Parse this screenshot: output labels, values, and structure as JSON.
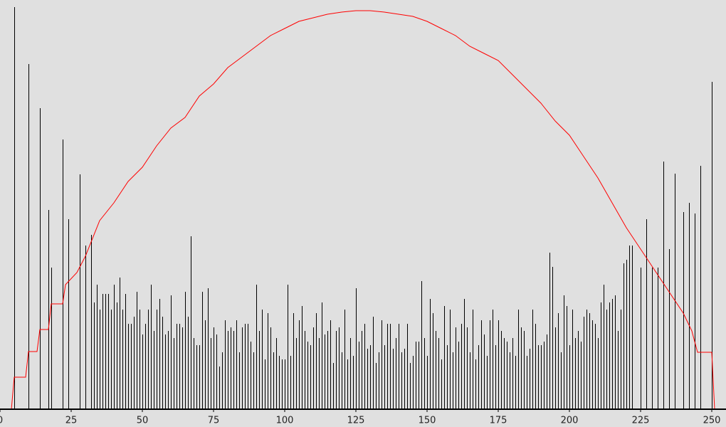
{
  "chart_data": {
    "type": "histogram-curve",
    "xlim": [
      0,
      255
    ],
    "ylim": [
      0,
      575
    ],
    "xticks": [
      0,
      25,
      50,
      75,
      100,
      125,
      150,
      175,
      200,
      225,
      250
    ],
    "series": [
      {
        "color": "#000000",
        "x": [
          0,
          1,
          2,
          3,
          4,
          5,
          6,
          7,
          8,
          9,
          10,
          11,
          12,
          13,
          14,
          15,
          16,
          17,
          18,
          19,
          20,
          21,
          22,
          23,
          24,
          25,
          26,
          27,
          28,
          29,
          30,
          31,
          32,
          33,
          34,
          35,
          36,
          37,
          38,
          39,
          40,
          41,
          42,
          43,
          44,
          45,
          46,
          47,
          48,
          49,
          50,
          51,
          52,
          53,
          54,
          55,
          56,
          57,
          58,
          59,
          60,
          61,
          62,
          63,
          64,
          65,
          66,
          67,
          68,
          69,
          70,
          71,
          72,
          73,
          74,
          75,
          76,
          77,
          78,
          79,
          80,
          81,
          82,
          83,
          84,
          85,
          86,
          87,
          88,
          89,
          90,
          91,
          92,
          93,
          94,
          95,
          96,
          97,
          98,
          99,
          100,
          101,
          102,
          103,
          104,
          105,
          106,
          107,
          108,
          109,
          110,
          111,
          112,
          113,
          114,
          115,
          116,
          117,
          118,
          119,
          120,
          121,
          122,
          123,
          124,
          125,
          126,
          127,
          128,
          129,
          130,
          131,
          132,
          133,
          134,
          135,
          136,
          137,
          138,
          139,
          140,
          141,
          142,
          143,
          144,
          145,
          146,
          147,
          148,
          149,
          150,
          151,
          152,
          153,
          154,
          155,
          156,
          157,
          158,
          159,
          160,
          161,
          162,
          163,
          164,
          165,
          166,
          167,
          168,
          169,
          170,
          171,
          172,
          173,
          174,
          175,
          176,
          177,
          178,
          179,
          180,
          181,
          182,
          183,
          184,
          185,
          186,
          187,
          188,
          189,
          190,
          191,
          192,
          193,
          194,
          195,
          196,
          197,
          198,
          199,
          200,
          201,
          202,
          203,
          204,
          205,
          206,
          207,
          208,
          209,
          210,
          211,
          212,
          213,
          214,
          215,
          216,
          217,
          218,
          219,
          220,
          221,
          222,
          223,
          224,
          225,
          226,
          227,
          228,
          229,
          230,
          231,
          232,
          233,
          234,
          235,
          236,
          237,
          238,
          239,
          240,
          241,
          242,
          243,
          244,
          245,
          246,
          247,
          248,
          249,
          250
        ],
        "values": [
          0,
          0,
          0,
          0,
          0,
          565,
          0,
          0,
          0,
          0,
          485,
          0,
          0,
          0,
          423,
          0,
          0,
          280,
          199,
          0,
          0,
          0,
          379,
          0,
          267,
          0,
          0,
          0,
          330,
          0,
          230,
          0,
          245,
          150,
          175,
          140,
          162,
          162,
          162,
          140,
          175,
          150,
          185,
          140,
          162,
          120,
          120,
          130,
          165,
          140,
          105,
          120,
          140,
          175,
          110,
          140,
          155,
          130,
          105,
          110,
          160,
          100,
          120,
          120,
          115,
          165,
          130,
          243,
          100,
          90,
          90,
          165,
          125,
          170,
          100,
          115,
          105,
          60,
          80,
          125,
          110,
          115,
          110,
          125,
          80,
          115,
          120,
          120,
          95,
          80,
          175,
          110,
          140,
          70,
          135,
          115,
          80,
          100,
          75,
          70,
          70,
          175,
          75,
          135,
          100,
          125,
          145,
          110,
          95,
          90,
          115,
          135,
          100,
          150,
          105,
          110,
          125,
          65,
          110,
          115,
          80,
          140,
          70,
          100,
          75,
          170,
          95,
          110,
          120,
          85,
          90,
          130,
          65,
          80,
          125,
          90,
          120,
          120,
          85,
          100,
          120,
          80,
          85,
          120,
          65,
          75,
          95,
          95,
          180,
          100,
          75,
          155,
          135,
          110,
          100,
          70,
          145,
          90,
          140,
          80,
          115,
          95,
          120,
          155,
          115,
          80,
          140,
          70,
          90,
          125,
          105,
          75,
          125,
          140,
          90,
          125,
          110,
          100,
          95,
          80,
          100,
          75,
          140,
          115,
          110,
          75,
          85,
          140,
          120,
          90,
          90,
          95,
          105,
          220,
          200,
          115,
          135,
          80,
          160,
          145,
          90,
          140,
          100,
          110,
          95,
          130,
          140,
          135,
          125,
          120,
          100,
          150,
          175,
          140,
          150,
          155,
          160,
          110,
          140,
          205,
          210,
          230,
          230,
          0,
          0,
          199,
          0,
          267,
          0,
          199,
          0,
          199,
          0,
          348,
          0,
          225,
          0,
          331,
          0,
          0,
          277,
          0,
          290,
          0,
          275,
          0,
          342,
          0,
          0,
          0,
          460
        ]
      },
      {
        "color": "#ff0000",
        "x": [
          0,
          4,
          5,
          9,
          10,
          13,
          14,
          17,
          18,
          22,
          23,
          27,
          30,
          35,
          40,
          45,
          50,
          55,
          60,
          65,
          70,
          75,
          80,
          85,
          90,
          95,
          100,
          105,
          110,
          115,
          120,
          125,
          130,
          135,
          140,
          145,
          150,
          155,
          160,
          165,
          170,
          175,
          180,
          185,
          190,
          195,
          200,
          205,
          210,
          215,
          220,
          225,
          230,
          235,
          240,
          243,
          245,
          250,
          251
        ],
        "values": [
          0,
          0,
          45,
          45,
          81,
          81,
          112,
          112,
          148,
          148,
          175,
          192,
          215,
          265,
          290,
          320,
          340,
          370,
          395,
          410,
          440,
          457,
          480,
          495,
          510,
          525,
          535,
          545,
          550,
          555,
          558,
          560,
          560,
          558,
          555,
          552,
          545,
          535,
          525,
          510,
          500,
          490,
          470,
          450,
          430,
          405,
          385,
          355,
          325,
          290,
          255,
          225,
          195,
          165,
          135,
          110,
          80,
          80,
          0
        ]
      }
    ]
  }
}
